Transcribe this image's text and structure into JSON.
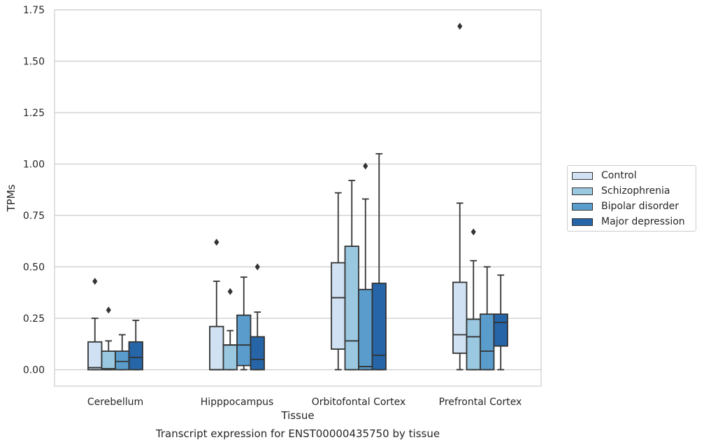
{
  "chart_data": {
    "type": "boxplot",
    "title": "",
    "caption": "Transcript expression for ENST00000435750 by tissue",
    "xlabel": "Tissue",
    "ylabel": "TPMs",
    "ylim": [
      -0.08,
      1.75
    ],
    "yticks": [
      0.0,
      0.25,
      0.5,
      0.75,
      1.0,
      1.25,
      1.5,
      1.75
    ],
    "ytick_labels": [
      "0.00",
      "0.25",
      "0.50",
      "0.75",
      "1.00",
      "1.25",
      "1.50",
      "1.75"
    ],
    "grid": true,
    "legend_position": "right",
    "categories": [
      "Cerebellum",
      "Hipppocampus",
      "Orbitofontal Cortex",
      "Prefrontal Cortex"
    ],
    "series": [
      {
        "name": "Control",
        "color": "#cfe1f2",
        "boxes": [
          {
            "whisker_low": 0.0,
            "q1": 0.0,
            "median": 0.01,
            "q3": 0.135,
            "whisker_high": 0.25,
            "outliers": [
              0.43
            ]
          },
          {
            "whisker_low": 0.0,
            "q1": 0.0,
            "median": 0.0,
            "q3": 0.21,
            "whisker_high": 0.43,
            "outliers": [
              0.62
            ]
          },
          {
            "whisker_low": 0.0,
            "q1": 0.1,
            "median": 0.35,
            "q3": 0.52,
            "whisker_high": 0.86,
            "outliers": []
          },
          {
            "whisker_low": 0.0,
            "q1": 0.08,
            "median": 0.17,
            "q3": 0.425,
            "whisker_high": 0.81,
            "outliers": [
              1.67
            ]
          }
        ]
      },
      {
        "name": "Schizophrenia",
        "color": "#9ac8e0",
        "boxes": [
          {
            "whisker_low": 0.0,
            "q1": 0.0,
            "median": 0.005,
            "q3": 0.09,
            "whisker_high": 0.14,
            "outliers": [
              0.29
            ]
          },
          {
            "whisker_low": 0.0,
            "q1": 0.0,
            "median": 0.12,
            "q3": 0.12,
            "whisker_high": 0.19,
            "outliers": [
              0.38
            ]
          },
          {
            "whisker_low": 0.0,
            "q1": 0.0,
            "median": 0.14,
            "q3": 0.6,
            "whisker_high": 0.92,
            "outliers": []
          },
          {
            "whisker_low": 0.0,
            "q1": 0.0,
            "median": 0.16,
            "q3": 0.245,
            "whisker_high": 0.53,
            "outliers": [
              0.67
            ]
          }
        ]
      },
      {
        "name": "Bipolar disorder",
        "color": "#5a9dcd",
        "boxes": [
          {
            "whisker_low": 0.0,
            "q1": 0.0,
            "median": 0.04,
            "q3": 0.09,
            "whisker_high": 0.17,
            "outliers": []
          },
          {
            "whisker_low": 0.0,
            "q1": 0.02,
            "median": 0.12,
            "q3": 0.265,
            "whisker_high": 0.45,
            "outliers": []
          },
          {
            "whisker_low": 0.0,
            "q1": 0.0,
            "median": 0.015,
            "q3": 0.39,
            "whisker_high": 0.83,
            "outliers": [
              0.99
            ]
          },
          {
            "whisker_low": 0.0,
            "q1": 0.0,
            "median": 0.09,
            "q3": 0.27,
            "whisker_high": 0.5,
            "outliers": []
          }
        ]
      },
      {
        "name": "Major depression",
        "color": "#2565a8",
        "boxes": [
          {
            "whisker_low": 0.0,
            "q1": 0.0,
            "median": 0.06,
            "q3": 0.135,
            "whisker_high": 0.24,
            "outliers": []
          },
          {
            "whisker_low": 0.0,
            "q1": 0.0,
            "median": 0.05,
            "q3": 0.16,
            "whisker_high": 0.28,
            "outliers": [
              0.5
            ]
          },
          {
            "whisker_low": 0.0,
            "q1": 0.0,
            "median": 0.07,
            "q3": 0.42,
            "whisker_high": 1.05,
            "outliers": []
          },
          {
            "whisker_low": 0.0,
            "q1": 0.115,
            "median": 0.23,
            "q3": 0.27,
            "whisker_high": 0.46,
            "outliers": []
          }
        ]
      }
    ]
  }
}
